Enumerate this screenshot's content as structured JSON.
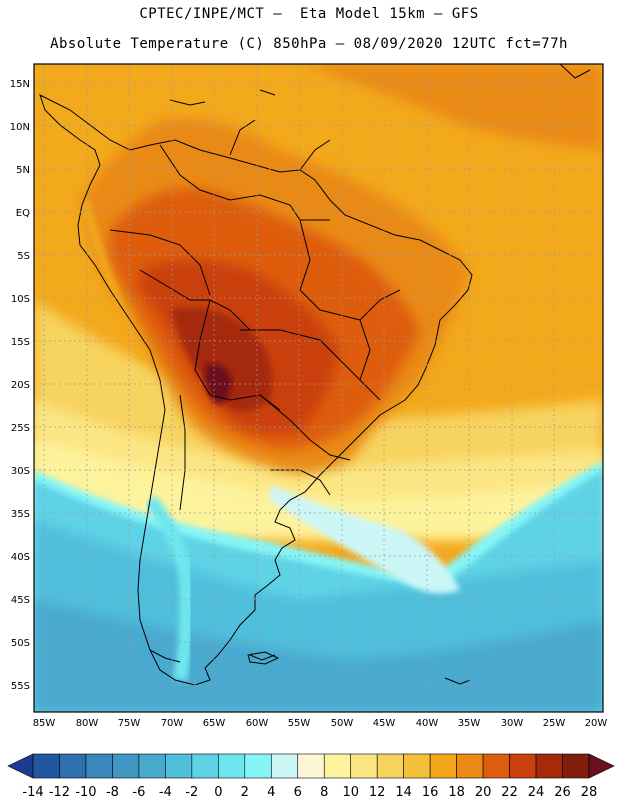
{
  "title_line1": "CPTEC/INPE/MCT —  Eta Model 15km — GFS",
  "title_line2": "Absolute Temperature (C) 850hPa — 08/09/2020 12UTC fct=77h",
  "lat_labels": [
    "15N",
    "10N",
    "5N",
    "EQ",
    "5S",
    "10S",
    "15S",
    "20S",
    "25S",
    "30S",
    "35S",
    "40S",
    "45S",
    "50S",
    "55S"
  ],
  "lon_labels": [
    "85W",
    "80W",
    "75W",
    "70W",
    "65W",
    "60W",
    "55W",
    "50W",
    "45W",
    "40W",
    "35W",
    "30W",
    "25W",
    "20W"
  ],
  "colorbar": {
    "labels": [
      "-14",
      "-12",
      "-10",
      "-8",
      "-6",
      "-4",
      "-2",
      "0",
      "2",
      "4",
      "6",
      "8",
      "10",
      "12",
      "14",
      "16",
      "18",
      "20",
      "22",
      "24",
      "26",
      "28"
    ],
    "colors": [
      "#1f3a93",
      "#21579f",
      "#2f6fae",
      "#3b86bb",
      "#4097c4",
      "#48a9cf",
      "#50bfdc",
      "#5ed3e6",
      "#6ee6ef",
      "#86f5f7",
      "#ccf6f6",
      "#fdf7d8",
      "#fdf39c",
      "#fce684",
      "#f7d35e",
      "#f3c039",
      "#f2a81a",
      "#ea8a14",
      "#de5d0e",
      "#c9400d",
      "#a52a0a",
      "#821e0e",
      "#6a0f1c"
    ]
  },
  "palette": {
    "ocean_warm": "#f3a91c",
    "ocean_cool": "#48c4dd",
    "hot_core": "#a52a0a"
  }
}
